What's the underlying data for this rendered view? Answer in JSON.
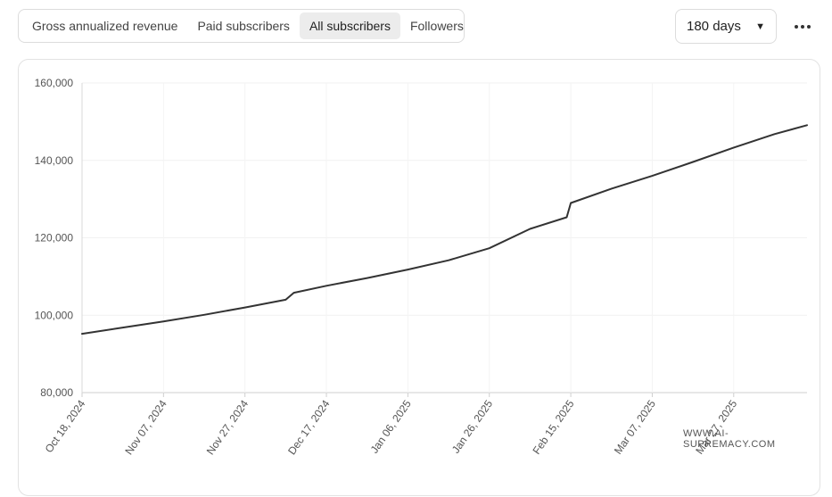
{
  "tabs": [
    {
      "label": "Gross annualized revenue",
      "active": false
    },
    {
      "label": "Paid subscribers",
      "active": false
    },
    {
      "label": "All subscribers",
      "active": true
    },
    {
      "label": "Followers",
      "active": false
    }
  ],
  "range_select": {
    "value": "180 days"
  },
  "watermark": "WWW.AI-SUPREMACY.COM",
  "chart_data": {
    "type": "line",
    "title": "",
    "xlabel": "",
    "ylabel": "",
    "ylim": [
      80000,
      160000
    ],
    "yticks": [
      "160,000",
      "140,000",
      "120,000",
      "100,000",
      "80,000"
    ],
    "xticks": [
      "Oct 18, 2024",
      "Nov 07, 2024",
      "Nov 27, 2024",
      "Dec 17, 2024",
      "Jan 06, 2025",
      "Jan 26, 2025",
      "Feb 15, 2025",
      "Mar 07, 2025",
      "Mar 27, 2025"
    ],
    "grid": true,
    "legend": "none",
    "line_color": "#333333",
    "series": [
      {
        "points": [
          [
            "2024-10-18",
            95200
          ],
          [
            "2024-10-28",
            96800
          ],
          [
            "2024-11-07",
            98400
          ],
          [
            "2024-11-17",
            100100
          ],
          [
            "2024-11-27",
            102000
          ],
          [
            "2024-12-07",
            104000
          ],
          [
            "2024-12-09",
            105800
          ],
          [
            "2024-12-17",
            107600
          ],
          [
            "2024-12-27",
            109600
          ],
          [
            "2025-01-06",
            111800
          ],
          [
            "2025-01-16",
            114200
          ],
          [
            "2025-01-26",
            117300
          ],
          [
            "2025-02-05",
            122300
          ],
          [
            "2025-02-14",
            125300
          ],
          [
            "2025-02-15",
            129000
          ],
          [
            "2025-02-25",
            132700
          ],
          [
            "2025-03-07",
            136000
          ],
          [
            "2025-03-17",
            139600
          ],
          [
            "2025-03-27",
            143300
          ],
          [
            "2025-04-06",
            146800
          ],
          [
            "2025-04-14",
            149100
          ]
        ]
      }
    ]
  }
}
